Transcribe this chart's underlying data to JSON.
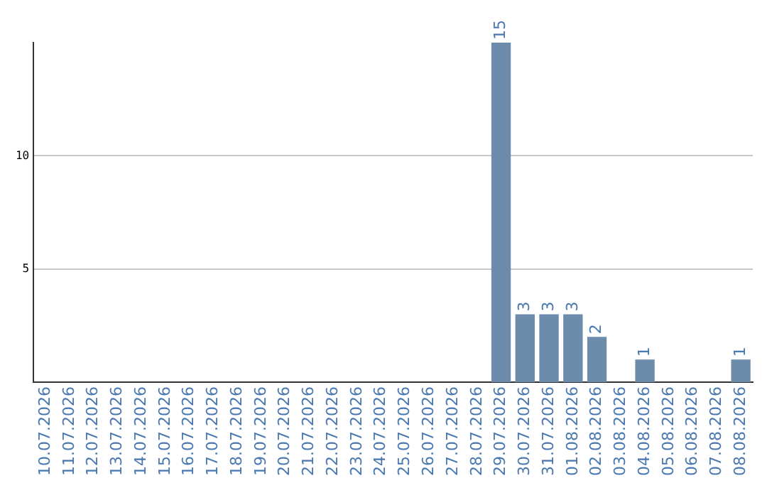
{
  "chart_data": {
    "type": "bar",
    "categories": [
      "10.07.2026",
      "11.07.2026",
      "12.07.2026",
      "13.07.2026",
      "14.07.2026",
      "15.07.2026",
      "16.07.2026",
      "17.07.2026",
      "18.07.2026",
      "19.07.2026",
      "20.07.2026",
      "21.07.2026",
      "22.07.2026",
      "23.07.2026",
      "24.07.2026",
      "25.07.2026",
      "26.07.2026",
      "27.07.2026",
      "28.07.2026",
      "29.07.2026",
      "30.07.2026",
      "31.07.2026",
      "01.08.2026",
      "02.08.2026",
      "03.08.2026",
      "04.08.2026",
      "05.08.2026",
      "06.08.2026",
      "07.08.2026",
      "08.08.2026"
    ],
    "values": [
      0,
      0,
      0,
      0,
      0,
      0,
      0,
      0,
      0,
      0,
      0,
      0,
      0,
      0,
      0,
      0,
      0,
      0,
      0,
      15,
      3,
      3,
      3,
      2,
      0,
      1,
      0,
      0,
      0,
      1
    ],
    "value_labels": [
      null,
      null,
      null,
      null,
      null,
      null,
      null,
      null,
      null,
      null,
      null,
      null,
      null,
      null,
      null,
      null,
      null,
      null,
      null,
      "15",
      "3",
      "3",
      "3",
      "2",
      null,
      "1",
      null,
      null,
      null,
      "1"
    ],
    "color": "#6d8cab",
    "ylim": [
      0,
      15
    ],
    "yticks": [
      5,
      10
    ],
    "grid": "y",
    "legend": false
  }
}
